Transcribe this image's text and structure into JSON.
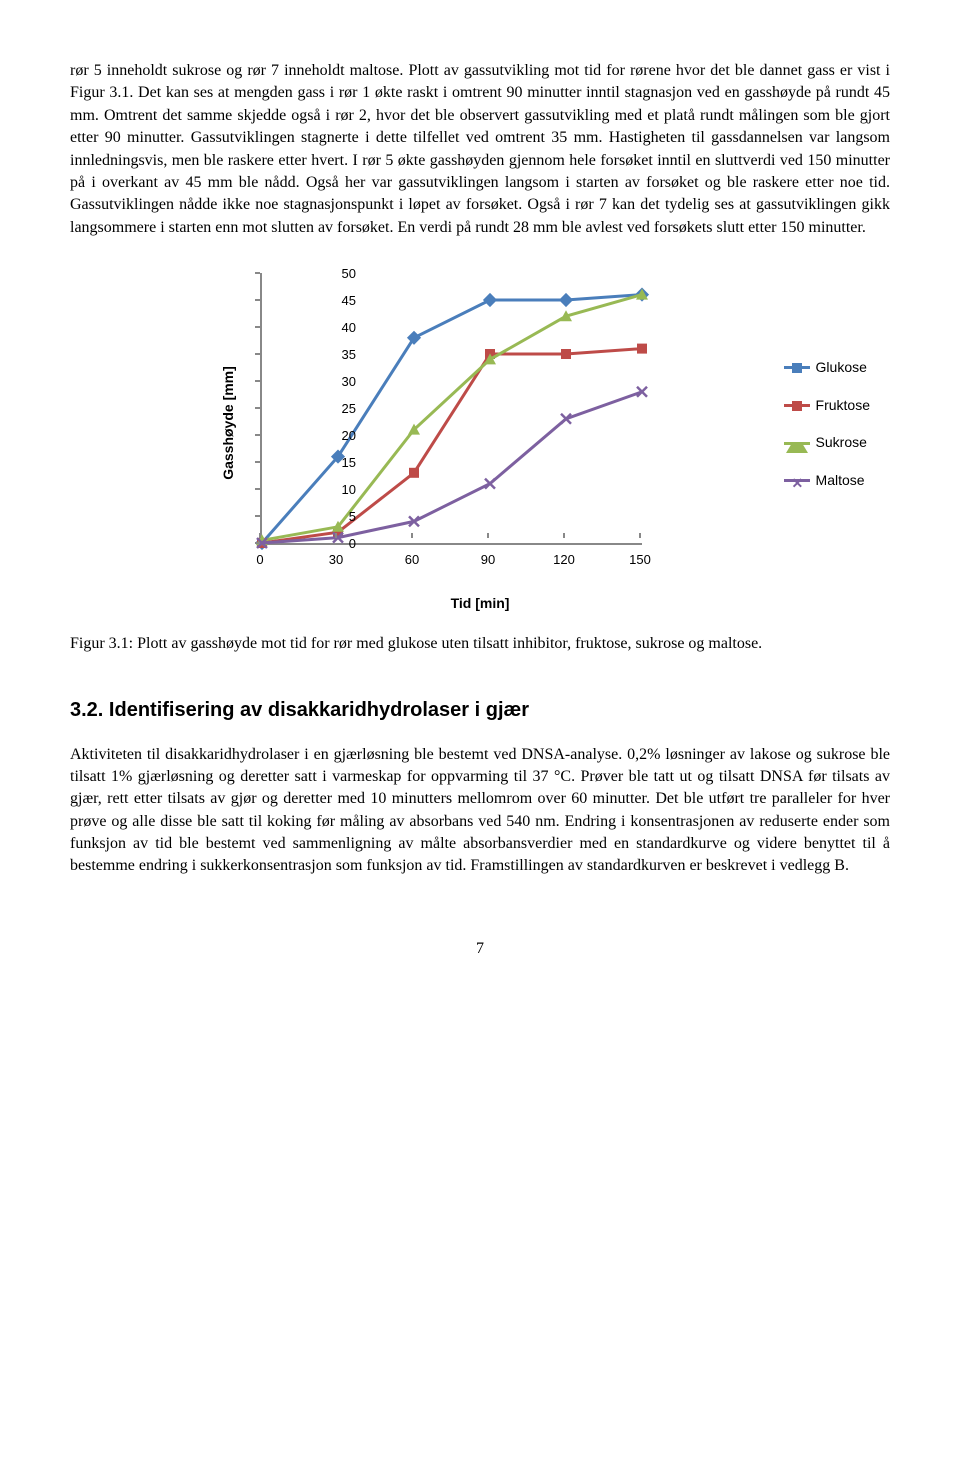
{
  "paragraphs": {
    "p1": "rør 5 inneholdt sukrose og rør 7 inneholdt maltose. Plott av gassutvikling mot tid for rørene hvor det ble dannet gass er vist i Figur 3.1. Det kan ses at mengden gass i rør 1 økte raskt i omtrent 90 minutter inntil stagnasjon ved en gasshøyde på rundt 45 mm. Omtrent det samme skjedde også i rør 2, hvor det ble observert gassutvikling med et platå rundt målingen som ble gjort etter 90 minutter. Gassutviklingen stagnerte i dette tilfellet ved omtrent 35 mm. Hastigheten til gassdannelsen var langsom innledningsvis, men ble raskere etter hvert. I rør 5 økte gasshøyden gjennom hele forsøket inntil en sluttverdi ved 150 minutter på i overkant av 45 mm ble nådd. Også her var gassutviklingen langsom i starten av forsøket og ble raskere etter noe tid. Gassutviklingen nådde ikke noe stagnasjonspunkt i løpet av forsøket. Også i rør 7 kan det tydelig ses at gassutviklingen gikk langsommere i starten enn mot slutten av forsøket. En verdi på rundt 28 mm ble avlest ved forsøkets slutt etter 150 minutter."
  },
  "chart": {
    "type": "line",
    "x_label": "Tid [min]",
    "y_label": "Gasshøyde [mm]",
    "x_ticks": [
      0,
      30,
      60,
      90,
      120,
      150
    ],
    "y_ticks": [
      0,
      5,
      10,
      15,
      20,
      25,
      30,
      35,
      40,
      45,
      50
    ],
    "xlim": [
      0,
      150
    ],
    "ylim": [
      0,
      50
    ],
    "series": [
      {
        "name": "Glukose",
        "color": "#4a7ebb",
        "marker": "diamond",
        "data": [
          [
            0,
            0
          ],
          [
            30,
            16
          ],
          [
            60,
            38
          ],
          [
            90,
            45
          ],
          [
            120,
            45
          ],
          [
            150,
            46
          ]
        ]
      },
      {
        "name": "Fruktose",
        "color": "#be4b48",
        "marker": "square",
        "data": [
          [
            0,
            0
          ],
          [
            30,
            2
          ],
          [
            60,
            13
          ],
          [
            90,
            35
          ],
          [
            120,
            35
          ],
          [
            150,
            36
          ]
        ]
      },
      {
        "name": "Sukrose",
        "color": "#98b954",
        "marker": "triangle",
        "data": [
          [
            0,
            0.5
          ],
          [
            30,
            3
          ],
          [
            60,
            21
          ],
          [
            90,
            34
          ],
          [
            120,
            42
          ],
          [
            150,
            46
          ]
        ]
      },
      {
        "name": "Maltose",
        "color": "#7d60a0",
        "marker": "x",
        "data": [
          [
            0,
            0
          ],
          [
            30,
            1
          ],
          [
            60,
            4
          ],
          [
            90,
            11
          ],
          [
            120,
            23
          ],
          [
            150,
            28
          ]
        ]
      }
    ],
    "line_width": 3,
    "marker_size": 10,
    "background": "#ffffff"
  },
  "caption": {
    "label": "Figur 3.1:",
    "text": " Plott av gasshøyde mot tid for rør med glukose uten tilsatt inhibitor, fruktose, sukrose og maltose."
  },
  "section": {
    "number": "3.2.",
    "title": "Identifisering av disakkaridhydrolaser i gjær"
  },
  "paragraph2": "Aktiviteten til disakkaridhydrolaser i en gjærløsning ble bestemt ved DNSA-analyse. 0,2% løsninger av lakose og sukrose ble tilsatt 1% gjærløsning og deretter satt i varmeskap for oppvarming til 37 °C. Prøver ble tatt ut og tilsatt DNSA før tilsats av gjær, rett etter tilsats av gjør og deretter med 10 minutters mellomrom over 60 minutter. Det ble utført tre paralleler for hver prøve og alle disse ble satt til koking før måling av absorbans ved 540 nm. Endring i konsentrasjonen av reduserte ender som funksjon av tid ble bestemt ved sammenligning av målte absorbansverdier med en standardkurve og videre benyttet til å bestemme endring i sukkerkonsentrasjon som funksjon av tid. Framstillingen av standardkurven er beskrevet i vedlegg B.",
  "page_number": "7"
}
